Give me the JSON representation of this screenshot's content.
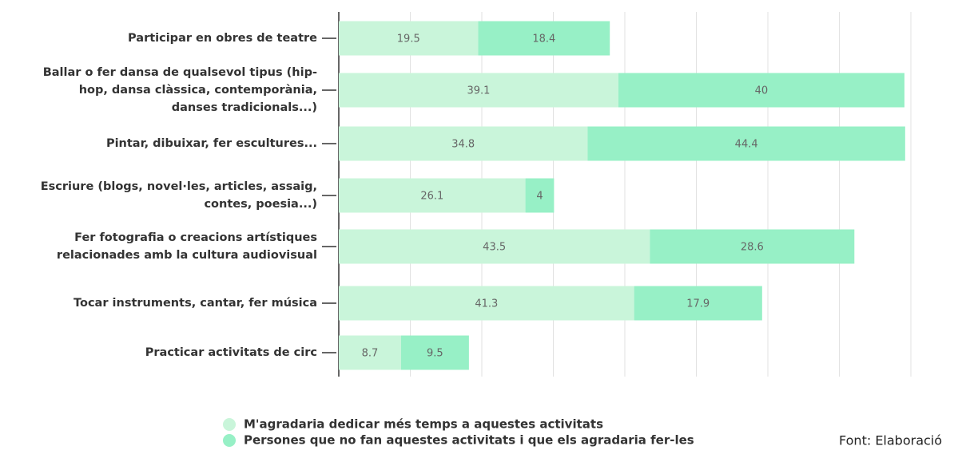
{
  "chart_data": {
    "type": "stacked_barh",
    "categories": [
      [
        "Participar en obres de teatre"
      ],
      [
        "Ballar o fer dansa de qualsevol tipus (hip-",
        "hop, dansa clàssica, contemporània,",
        "danses tradicionals...)"
      ],
      [
        "Pintar, dibuixar, fer escultures..."
      ],
      [
        "Escriure (blogs, novel·les, articles, assaig,",
        "contes, poesia...)"
      ],
      [
        "Fer fotografia o creacions artístiques",
        "relacionades amb la cultura audiovisual"
      ],
      [
        "Tocar instruments, cantar, fer música"
      ],
      [
        "Practicar activitats de circ"
      ]
    ],
    "series": [
      {
        "name": "M'agradaria dedicar més temps a aquestes activitats",
        "color": "#c9f5da",
        "values": [
          19.5,
          39.1,
          34.8,
          26.1,
          43.5,
          41.3,
          8.7
        ]
      },
      {
        "name": "Persones que no fan aquestes activitats i que els agradaria fer-les",
        "color": "#97f0c6",
        "values": [
          18.4,
          40,
          44.4,
          4,
          28.6,
          17.9,
          9.5
        ]
      }
    ],
    "xlim": [
      0,
      80
    ],
    "xticks": [
      0,
      10,
      20,
      30,
      40,
      50,
      60,
      70,
      80
    ],
    "show_xtick_labels": false,
    "grid": true,
    "source": "Font: Elaboració"
  }
}
